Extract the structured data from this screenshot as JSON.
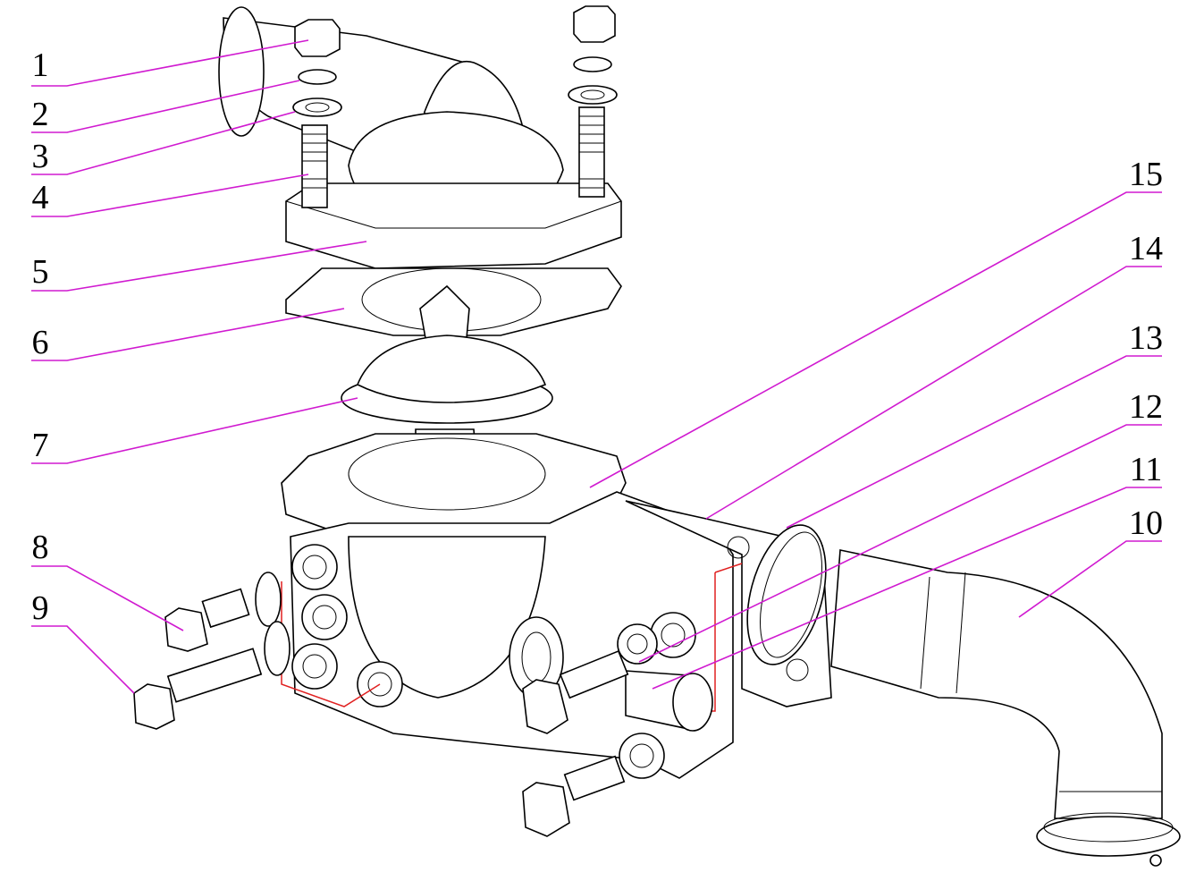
{
  "callouts": [
    {
      "label": "1"
    },
    {
      "label": "2"
    },
    {
      "label": "3"
    },
    {
      "label": "4"
    },
    {
      "label": "5"
    },
    {
      "label": "6"
    },
    {
      "label": "7"
    },
    {
      "label": "8"
    },
    {
      "label": "9"
    },
    {
      "label": "10"
    },
    {
      "label": "11"
    },
    {
      "label": "12"
    },
    {
      "label": "13"
    },
    {
      "label": "14"
    },
    {
      "label": "15"
    }
  ]
}
